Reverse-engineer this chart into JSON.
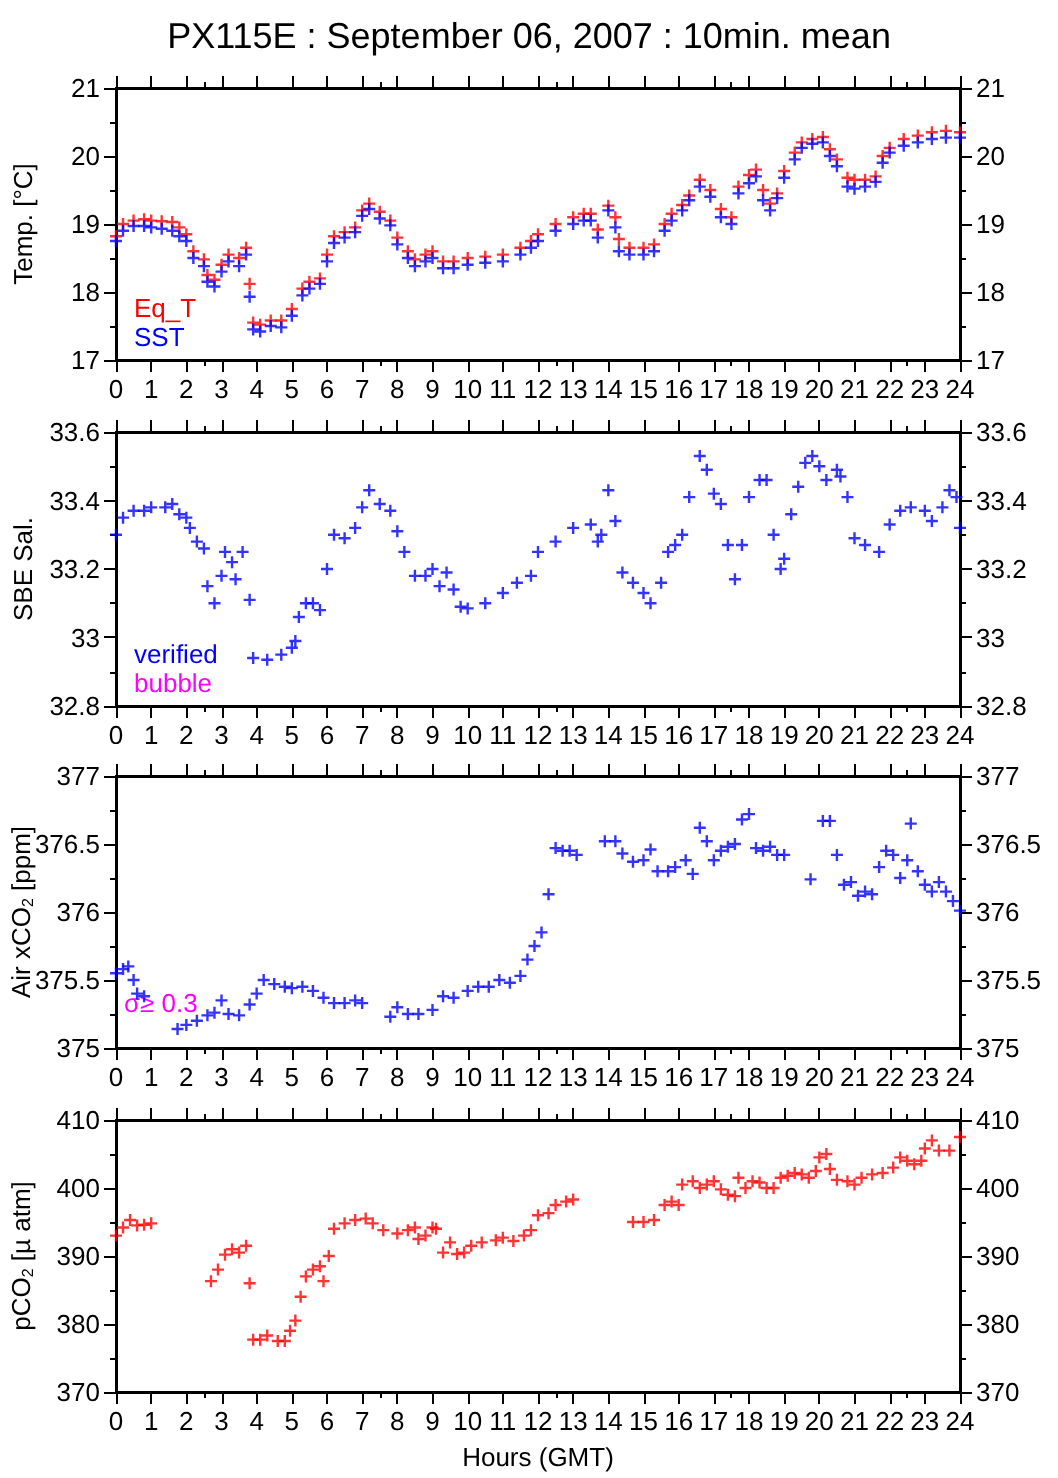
{
  "chart_data": [
    {
      "type": "scatter",
      "title": "PX115E : September 06, 2007 : 10min. mean",
      "ylabel": "Temp. [°C]",
      "marker": "cross",
      "legend": "bottom left",
      "xlim": [
        0,
        24
      ],
      "xticks": [
        0,
        1,
        2,
        3,
        4,
        5,
        6,
        7,
        8,
        9,
        10,
        11,
        12,
        13,
        14,
        15,
        16,
        17,
        18,
        19,
        20,
        21,
        22,
        23,
        24
      ],
      "ylim": [
        17,
        21
      ],
      "yticks": [
        17,
        18,
        19,
        20,
        21
      ],
      "y2lim": [
        17,
        21
      ],
      "y2ticks": [
        17,
        18,
        19,
        20,
        21
      ],
      "x": [
        0,
        0.2,
        0.5,
        0.8,
        1.0,
        1.3,
        1.6,
        1.8,
        2.0,
        2.2,
        2.5,
        2.6,
        2.8,
        3.0,
        3.2,
        3.5,
        3.7,
        3.8,
        3.9,
        4.1,
        4.4,
        4.7,
        5.0,
        5.3,
        5.5,
        5.8,
        6.0,
        6.2,
        6.5,
        6.8,
        7.0,
        7.2,
        7.5,
        7.8,
        8.0,
        8.3,
        8.5,
        8.8,
        9.0,
        9.3,
        9.6,
        10.0,
        10.5,
        11.0,
        11.5,
        11.8,
        12.0,
        12.5,
        13.0,
        13.3,
        13.5,
        13.7,
        14.0,
        14.2,
        14.3,
        14.6,
        15.0,
        15.3,
        15.6,
        15.8,
        16.1,
        16.3,
        16.6,
        16.9,
        17.2,
        17.5,
        17.7,
        18.0,
        18.2,
        18.4,
        18.6,
        18.8,
        19.0,
        19.3,
        19.5,
        19.8,
        20.1,
        20.3,
        20.5,
        20.8,
        21.0,
        21.3,
        21.6,
        21.8,
        22.0,
        22.4,
        22.8,
        23.2,
        23.6,
        24.0
      ],
      "series": [
        {
          "name": "Eq_T",
          "color": "#ff0000",
          "values": [
            18.82,
            19.0,
            19.05,
            19.07,
            19.05,
            19.04,
            19.03,
            18.95,
            18.85,
            18.6,
            18.48,
            18.25,
            18.18,
            18.4,
            18.55,
            18.5,
            18.65,
            18.12,
            17.55,
            17.52,
            17.58,
            17.58,
            17.75,
            18.05,
            18.15,
            18.2,
            18.55,
            18.82,
            18.88,
            18.95,
            19.2,
            19.3,
            19.18,
            19.05,
            18.8,
            18.6,
            18.48,
            18.55,
            18.6,
            18.45,
            18.45,
            18.5,
            18.52,
            18.55,
            18.65,
            18.75,
            18.85,
            19.0,
            19.1,
            19.15,
            19.15,
            18.92,
            19.27,
            19.1,
            18.78,
            18.65,
            18.65,
            18.7,
            19.0,
            19.15,
            19.28,
            19.42,
            19.65,
            19.5,
            19.22,
            19.1,
            19.55,
            19.72,
            19.8,
            19.5,
            19.3,
            19.45,
            19.78,
            20.05,
            20.2,
            20.25,
            20.28,
            20.1,
            19.95,
            19.68,
            19.65,
            19.65,
            19.7,
            20.0,
            20.12,
            20.25,
            20.3,
            20.35,
            20.37,
            20.35
          ]
        },
        {
          "name": "SST",
          "color": "#0000ff",
          "values": [
            18.75,
            18.9,
            18.97,
            18.97,
            18.95,
            18.93,
            18.9,
            18.82,
            18.75,
            18.5,
            18.38,
            18.15,
            18.08,
            18.3,
            18.45,
            18.38,
            18.55,
            17.93,
            17.45,
            17.42,
            17.5,
            17.48,
            17.65,
            17.95,
            18.05,
            18.12,
            18.45,
            18.72,
            18.8,
            18.88,
            19.12,
            19.22,
            19.08,
            18.98,
            18.7,
            18.5,
            18.38,
            18.45,
            18.5,
            18.35,
            18.35,
            18.4,
            18.43,
            18.45,
            18.55,
            18.65,
            18.75,
            18.9,
            19.0,
            19.05,
            19.05,
            18.8,
            19.2,
            18.95,
            18.6,
            18.55,
            18.55,
            18.6,
            18.9,
            19.05,
            19.2,
            19.35,
            19.55,
            19.4,
            19.1,
            19.0,
            19.45,
            19.6,
            19.7,
            19.35,
            19.2,
            19.38,
            19.68,
            19.95,
            20.12,
            20.18,
            20.2,
            20.0,
            19.85,
            19.55,
            19.52,
            19.55,
            19.62,
            19.9,
            20.05,
            20.15,
            20.2,
            20.25,
            20.27,
            20.27
          ]
        }
      ]
    },
    {
      "type": "scatter",
      "ylabel": "SBE Sal.",
      "marker": "cross",
      "legend": "bottom left",
      "xlim": [
        0,
        24
      ],
      "xticks": [
        0,
        1,
        2,
        3,
        4,
        5,
        6,
        7,
        8,
        9,
        10,
        11,
        12,
        13,
        14,
        15,
        16,
        17,
        18,
        19,
        20,
        21,
        22,
        23,
        24
      ],
      "ylim": [
        32.8,
        33.6
      ],
      "yticks": [
        32.8,
        33,
        33.2,
        33.4,
        33.6
      ],
      "y2lim": [
        32.8,
        33.6
      ],
      "y2ticks": [
        32.8,
        33,
        33.2,
        33.4,
        33.6
      ],
      "x": [
        0,
        0.2,
        0.5,
        0.8,
        1.0,
        1.4,
        1.6,
        1.8,
        2.0,
        2.1,
        2.3,
        2.5,
        2.6,
        2.8,
        3.0,
        3.1,
        3.3,
        3.4,
        3.6,
        3.8,
        3.9,
        4.3,
        4.7,
        5.0,
        5.1,
        5.2,
        5.4,
        5.6,
        5.8,
        6.0,
        6.2,
        6.5,
        6.8,
        7.0,
        7.2,
        7.5,
        7.8,
        8.0,
        8.2,
        8.5,
        8.8,
        9.0,
        9.2,
        9.4,
        9.6,
        9.8,
        10.0,
        10.5,
        11.0,
        11.4,
        11.8,
        12.0,
        12.5,
        13.0,
        13.5,
        13.7,
        13.8,
        14.0,
        14.2,
        14.4,
        14.7,
        15.0,
        15.2,
        15.5,
        15.7,
        15.9,
        16.1,
        16.3,
        16.6,
        16.8,
        17.0,
        17.2,
        17.4,
        17.6,
        17.8,
        18.0,
        18.3,
        18.5,
        18.7,
        18.9,
        19.0,
        19.2,
        19.4,
        19.6,
        19.8,
        20.0,
        20.2,
        20.5,
        20.6,
        20.8,
        21.0,
        21.3,
        21.7,
        22.0,
        22.3,
        22.6,
        23.0,
        23.2,
        23.5,
        23.7,
        23.9,
        24.0
      ],
      "series": [
        {
          "name": "verified",
          "color": "#0000ff",
          "values": [
            33.3,
            33.35,
            33.37,
            33.37,
            33.38,
            33.38,
            33.39,
            33.36,
            33.35,
            33.32,
            33.28,
            33.26,
            33.15,
            33.1,
            33.18,
            33.25,
            33.22,
            33.17,
            33.25,
            33.11,
            32.94,
            32.935,
            32.95,
            32.97,
            32.99,
            33.06,
            33.1,
            33.1,
            33.08,
            33.2,
            33.3,
            33.29,
            33.32,
            33.38,
            33.43,
            33.39,
            33.37,
            33.31,
            33.25,
            33.18,
            33.18,
            33.2,
            33.15,
            33.19,
            33.14,
            33.09,
            33.085,
            33.1,
            33.13,
            33.16,
            33.18,
            33.25,
            33.28,
            33.32,
            33.33,
            33.28,
            33.3,
            33.43,
            33.34,
            33.19,
            33.16,
            33.13,
            33.1,
            33.16,
            33.25,
            33.27,
            33.3,
            33.41,
            33.53,
            33.49,
            33.42,
            33.39,
            33.27,
            33.17,
            33.27,
            33.41,
            33.46,
            33.46,
            33.3,
            33.2,
            33.23,
            33.36,
            33.44,
            33.51,
            33.53,
            33.5,
            33.46,
            33.49,
            33.47,
            33.41,
            33.29,
            33.27,
            33.25,
            33.33,
            33.37,
            33.38,
            33.37,
            33.34,
            33.38,
            33.43,
            33.41,
            33.32
          ]
        },
        {
          "name": "bubble",
          "color": "#ff00ff",
          "values": [
            null,
            null,
            null,
            null,
            null,
            null,
            null,
            null,
            null,
            null,
            null,
            null,
            null,
            null,
            null,
            null,
            null,
            null,
            null,
            null,
            null,
            null,
            null,
            null,
            null,
            null,
            null,
            null,
            null,
            null,
            null,
            null,
            null,
            null,
            null,
            null,
            null,
            null,
            null,
            null,
            null,
            null,
            null,
            null,
            null,
            null,
            null,
            null,
            null,
            null,
            null,
            null,
            null,
            null,
            null,
            null,
            null,
            null,
            null,
            null,
            null,
            null,
            null,
            null,
            null,
            null,
            null,
            null,
            null,
            null,
            null,
            null,
            null,
            null,
            null,
            null,
            null,
            null,
            null,
            null,
            null,
            null,
            null,
            null,
            null,
            null,
            null,
            null,
            null,
            null,
            null,
            null,
            null,
            null,
            null,
            null,
            null,
            null,
            null,
            null,
            null,
            null
          ]
        }
      ]
    },
    {
      "type": "scatter",
      "ylabel": "Air xCO$_{2}$ [ppm]",
      "marker": "cross",
      "annotations": [
        "σ≥ 0.3"
      ],
      "xlim": [
        0,
        24
      ],
      "xticks": [
        0,
        1,
        2,
        3,
        4,
        5,
        6,
        7,
        8,
        9,
        10,
        11,
        12,
        13,
        14,
        15,
        16,
        17,
        18,
        19,
        20,
        21,
        22,
        23,
        24
      ],
      "ylim": [
        375,
        377
      ],
      "yticks": [
        375,
        375.5,
        376,
        376.5,
        377
      ],
      "y2lim": [
        375,
        377
      ],
      "y2ticks": [
        375,
        375.5,
        376,
        376.5,
        377
      ],
      "x": [
        0,
        0.2,
        0.35,
        0.5,
        0.6,
        0.8,
        1.75,
        2.0,
        2.3,
        2.6,
        2.8,
        3.0,
        3.2,
        3.5,
        3.8,
        4.0,
        4.2,
        4.5,
        4.8,
        5.0,
        5.3,
        5.6,
        5.9,
        6.2,
        6.5,
        6.8,
        7.0,
        7.8,
        8.0,
        8.3,
        8.6,
        9.0,
        9.3,
        9.6,
        10.0,
        10.3,
        10.6,
        10.9,
        11.2,
        11.5,
        11.7,
        11.9,
        12.1,
        12.3,
        12.5,
        12.7,
        12.9,
        13.1,
        13.9,
        14.2,
        14.4,
        14.7,
        15.0,
        15.2,
        15.4,
        15.7,
        15.9,
        16.2,
        16.4,
        16.6,
        16.8,
        17.0,
        17.2,
        17.4,
        17.6,
        17.8,
        18.0,
        18.2,
        18.4,
        18.6,
        18.8,
        19.0,
        19.75,
        20.1,
        20.3,
        20.5,
        20.7,
        20.9,
        21.1,
        21.3,
        21.5,
        21.7,
        21.9,
        22.1,
        22.3,
        22.5,
        22.6,
        22.8,
        23.0,
        23.2,
        23.4,
        23.6,
        23.8,
        24.0
      ],
      "series": [
        {
          "color": "#0000ff",
          "values": [
            375.55,
            375.58,
            375.6,
            375.5,
            375.4,
            375.38,
            375.14,
            375.17,
            375.2,
            375.24,
            375.26,
            375.35,
            375.25,
            375.24,
            375.32,
            375.4,
            375.5,
            375.47,
            375.45,
            375.44,
            375.45,
            375.42,
            375.37,
            375.33,
            375.33,
            375.35,
            375.33,
            375.23,
            375.3,
            375.25,
            375.25,
            375.28,
            375.38,
            375.37,
            375.42,
            375.45,
            375.45,
            375.5,
            375.48,
            375.53,
            375.65,
            375.75,
            375.85,
            376.13,
            376.47,
            376.45,
            376.45,
            376.42,
            376.52,
            376.52,
            376.43,
            376.37,
            376.38,
            376.46,
            376.3,
            376.3,
            376.33,
            376.38,
            376.28,
            376.62,
            376.52,
            376.38,
            376.45,
            376.48,
            376.5,
            376.68,
            376.72,
            376.47,
            376.45,
            376.48,
            376.42,
            376.42,
            376.24,
            376.67,
            376.67,
            376.42,
            376.2,
            376.22,
            376.12,
            376.15,
            376.13,
            376.33,
            376.45,
            376.42,
            376.25,
            376.38,
            376.65,
            376.3,
            376.2,
            376.15,
            376.22,
            376.15,
            376.08,
            376.01
          ]
        }
      ]
    },
    {
      "type": "scatter",
      "xlabel": "Hours (GMT)",
      "ylabel": "pCO$_{2}$ [µ atm]",
      "marker": "cross",
      "xlim": [
        0,
        24
      ],
      "xticks": [
        0,
        1,
        2,
        3,
        4,
        5,
        6,
        7,
        8,
        9,
        10,
        11,
        12,
        13,
        14,
        15,
        16,
        17,
        18,
        19,
        20,
        21,
        22,
        23,
        24
      ],
      "ylim": [
        370,
        410
      ],
      "yticks": [
        370,
        380,
        390,
        400,
        410
      ],
      "y2lim": [
        370,
        410
      ],
      "y2ticks": [
        370,
        380,
        390,
        400,
        410
      ],
      "x": [
        0,
        0.2,
        0.4,
        0.6,
        0.8,
        1.0,
        2.7,
        2.9,
        3.1,
        3.3,
        3.5,
        3.7,
        3.8,
        3.9,
        4.1,
        4.3,
        4.6,
        4.8,
        4.95,
        5.1,
        5.25,
        5.4,
        5.6,
        5.8,
        5.9,
        6.05,
        6.2,
        6.5,
        6.8,
        7.1,
        7.3,
        7.6,
        8.0,
        8.3,
        8.5,
        8.6,
        8.8,
        9.0,
        9.1,
        9.3,
        9.5,
        9.7,
        9.9,
        10.1,
        10.4,
        10.8,
        11.0,
        11.3,
        11.6,
        11.8,
        12.0,
        12.3,
        12.5,
        12.8,
        13.0,
        14.7,
        15.0,
        15.3,
        15.6,
        15.8,
        16.0,
        16.1,
        16.4,
        16.6,
        16.8,
        17.0,
        17.2,
        17.4,
        17.6,
        17.7,
        17.9,
        18.1,
        18.3,
        18.5,
        18.7,
        18.9,
        19.1,
        19.3,
        19.5,
        19.7,
        19.9,
        20.0,
        20.2,
        20.3,
        20.5,
        20.8,
        21.0,
        21.2,
        21.5,
        21.8,
        22.1,
        22.3,
        22.5,
        22.7,
        22.9,
        23.0,
        23.2,
        23.4,
        23.7,
        24.0
      ],
      "series": [
        {
          "color": "#ff0000",
          "values": [
            393,
            394.2,
            395.3,
            394.5,
            394.6,
            394.8,
            386.3,
            388,
            390.2,
            391,
            390.5,
            391.5,
            386,
            377.7,
            377.7,
            378.3,
            377.5,
            377.5,
            379,
            380.5,
            384,
            387,
            388,
            388.5,
            386.3,
            390,
            394,
            394.8,
            395.3,
            395.5,
            394.8,
            393.8,
            393.3,
            393.8,
            394.2,
            392.5,
            393,
            394.2,
            394,
            390.5,
            392,
            390.3,
            390.5,
            391.5,
            392,
            392.3,
            392.7,
            392.2,
            393,
            393.8,
            396,
            396.3,
            397.5,
            398,
            398.3,
            395,
            395,
            395.3,
            397.5,
            398,
            397.5,
            400.5,
            401,
            400,
            400.5,
            401,
            399.8,
            399,
            398.8,
            401.5,
            400,
            401,
            400.8,
            400,
            400,
            401.5,
            401.8,
            402.2,
            402,
            401.5,
            402.5,
            404.5,
            405,
            402.8,
            401.2,
            401,
            400.5,
            401.5,
            402,
            402.2,
            403,
            404.5,
            404,
            403.5,
            404,
            405.8,
            407,
            405.5,
            405.5,
            407.5
          ]
        }
      ]
    }
  ]
}
